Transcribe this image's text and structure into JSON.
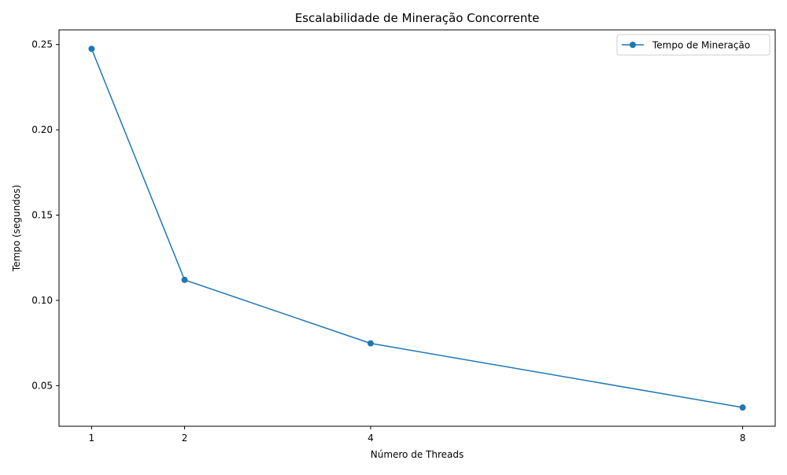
{
  "chart_data": {
    "type": "line",
    "title": "Escalabilidade de Mineração Concorrente",
    "xlabel": "Número de Threads",
    "ylabel": "Tempo (segundos)",
    "x": [
      1,
      2,
      4,
      8
    ],
    "series": [
      {
        "name": "Tempo de Mineração",
        "values": [
          0.2475,
          0.112,
          0.0748,
          0.0372
        ],
        "color": "#1f77b4",
        "marker": "circle"
      }
    ],
    "xlim": [
      0.65,
      8.35
    ],
    "ylim": [
      0.0262,
      0.2586
    ],
    "x_ticks": [
      1,
      2,
      4,
      8
    ],
    "y_ticks": [
      0.05,
      0.1,
      0.15,
      0.2,
      0.25
    ],
    "x_tick_labels": [
      "1",
      "2",
      "4",
      "8"
    ],
    "y_tick_labels": [
      "0.05",
      "0.10",
      "0.15",
      "0.20",
      "0.25"
    ],
    "grid": false,
    "legend_position": "top-right"
  }
}
